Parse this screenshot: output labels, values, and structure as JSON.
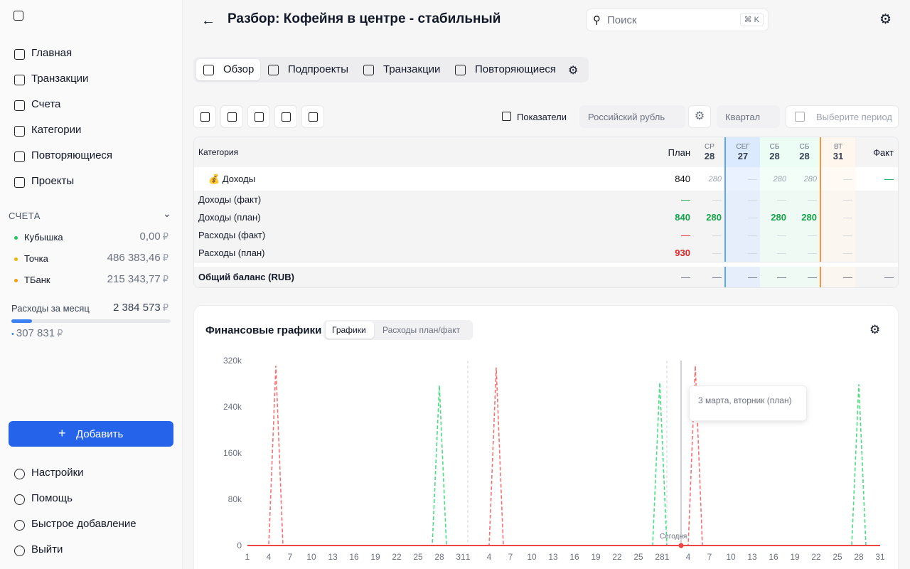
{
  "sidebar": {
    "nav": [
      "Главная",
      "Транзакции",
      "Счета",
      "Категории",
      "Повторяющиеся",
      "Проекты"
    ],
    "accounts_title": "СЧЕТА",
    "accounts": [
      {
        "name": "Кубышка",
        "balance": "0,00",
        "currency": "₽",
        "color": "#22c55e"
      },
      {
        "name": "Точка",
        "balance": "486 383,46",
        "currency": "₽",
        "color": "#eab308"
      },
      {
        "name": "ТБанк",
        "balance": "215 343,77",
        "currency": "₽",
        "color": "#f59e0b"
      }
    ],
    "monthly_label": "Расходы за месяц",
    "monthly_value": "2 384 573",
    "monthly_currency": "₽",
    "monthly_sub": "307 831",
    "add_button": "Добавить",
    "footer": [
      "Настройки",
      "Помощь",
      "Быстрое добавление",
      "Выйти"
    ]
  },
  "header": {
    "title": "Разбор: Кофейня в центре - стабильный",
    "search": "Поиск",
    "shortcut": "⌘ K"
  },
  "tabs": [
    "Обзор",
    "Подпроекты",
    "Транзакции",
    "Повторяющиеся"
  ],
  "toolbar": {
    "indicators": "Показатели",
    "currency": "Российский рубль",
    "period": "Квартал",
    "date": "Выберите период"
  },
  "table": {
    "category_header": "Категория",
    "plan_header": "План",
    "days": [
      {
        "dow": "СР",
        "day": "28"
      },
      {
        "dow": "СЕГ",
        "day": "27"
      },
      {
        "dow": "СБ",
        "day": "28"
      },
      {
        "dow": "СБ",
        "day": "28"
      },
      {
        "dow": "ВТ",
        "day": "31"
      }
    ],
    "fact_header": "Факт",
    "rows": [
      {
        "label": "💰 Доходы",
        "cells": [
          "840",
          "280",
          "—",
          "280",
          "280",
          "—",
          "—"
        ]
      },
      {
        "label": "Доходы (факт)",
        "cells": [
          "—",
          "—",
          "—",
          "—",
          "—",
          "—"
        ]
      },
      {
        "label": "Доходы (план)",
        "cells": [
          "840",
          "280",
          "—",
          "280",
          "280",
          "—"
        ]
      },
      {
        "label": "Расходы (факт)",
        "cells": [
          "—",
          "—",
          "—",
          "—",
          "—",
          "—"
        ]
      },
      {
        "label": "Расходы (план)",
        "cells": [
          "930",
          "—",
          "—",
          "—",
          "—",
          "—"
        ]
      },
      {
        "label": "Общий баланс (RUB)",
        "cells": [
          "—",
          "—",
          "—",
          "—",
          "—",
          "—",
          "—"
        ]
      }
    ]
  },
  "charts_card": {
    "title": "Финансовые графики",
    "tabs": [
      "Графики",
      "Расходы план/факт"
    ],
    "tooltip": "3 марта, вторник (план)"
  },
  "chart_data": {
    "type": "line",
    "xlim": [
      0,
      89
    ],
    "xticks": [
      {
        "value": 0,
        "label": "1"
      },
      {
        "value": 3,
        "label": "4"
      },
      {
        "value": 6,
        "label": "7"
      },
      {
        "value": 9,
        "label": "10"
      },
      {
        "value": 12,
        "label": "13"
      },
      {
        "value": 15,
        "label": "16"
      },
      {
        "value": 18,
        "label": "19"
      },
      {
        "value": 21,
        "label": "22"
      },
      {
        "value": 24,
        "label": "25"
      },
      {
        "value": 27,
        "label": "28"
      },
      {
        "value": 30,
        "label": "31"
      },
      {
        "value": 31,
        "label": "1"
      },
      {
        "value": 34,
        "label": "4"
      },
      {
        "value": 37,
        "label": "7"
      },
      {
        "value": 40,
        "label": "10"
      },
      {
        "value": 43,
        "label": "13"
      },
      {
        "value": 46,
        "label": "16"
      },
      {
        "value": 49,
        "label": "19"
      },
      {
        "value": 52,
        "label": "22"
      },
      {
        "value": 55,
        "label": "25"
      },
      {
        "value": 58,
        "label": "28"
      },
      {
        "value": 59,
        "label": "1"
      },
      {
        "value": 62,
        "label": "4"
      },
      {
        "value": 65,
        "label": "7"
      },
      {
        "value": 68,
        "label": "10"
      },
      {
        "value": 71,
        "label": "13"
      },
      {
        "value": 74,
        "label": "16"
      },
      {
        "value": 77,
        "label": "19"
      },
      {
        "value": 80,
        "label": "22"
      },
      {
        "value": 83,
        "label": "25"
      },
      {
        "value": 86,
        "label": "28"
      },
      {
        "value": 89,
        "label": "31"
      }
    ],
    "ylim": [
      0,
      320000
    ],
    "yticks": [
      {
        "value": 0,
        "label": "0"
      },
      {
        "value": 80000,
        "label": "80k"
      },
      {
        "value": 160000,
        "label": "160k"
      },
      {
        "value": 240000,
        "label": "240k"
      },
      {
        "value": 320000,
        "label": "320k"
      }
    ],
    "vlines": [
      31,
      59
    ],
    "today": {
      "x": 61,
      "label": "Сегодня"
    },
    "series": [
      {
        "color": "#f87171",
        "dashed": true,
        "x": [
          0,
          3,
          4,
          5,
          34,
          35,
          36,
          62,
          63,
          64,
          89
        ],
        "values": [
          0,
          0,
          311000,
          0,
          0,
          308000,
          0,
          0,
          311000,
          0,
          0
        ]
      },
      {
        "color": "#4ade80",
        "dashed": true,
        "x": [
          0,
          26,
          27,
          28,
          57,
          58,
          59,
          85,
          86,
          87,
          89
        ],
        "values": [
          0,
          0,
          277000,
          0,
          0,
          282000,
          0,
          0,
          279000,
          0,
          0
        ]
      },
      {
        "color": "#ef4444",
        "dashed": false,
        "x": [
          0,
          89
        ],
        "values": [
          0,
          0
        ]
      }
    ]
  }
}
